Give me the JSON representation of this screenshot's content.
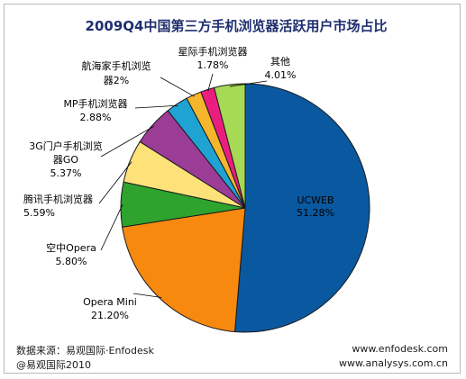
{
  "chart_data": {
    "type": "pie",
    "title": "2009Q4中国第三方手机浏览器活跃用户市场占比",
    "slices": [
      {
        "name": "UCWEB",
        "value": 51.28,
        "value_label": "51.28%",
        "color": "#0a58a0"
      },
      {
        "name": "Opera Mini",
        "value": 21.2,
        "value_label": "21.20%",
        "color": "#f7890f"
      },
      {
        "name": "空中Opera",
        "value": 5.8,
        "value_label": "5.80%",
        "color": "#2ea32e"
      },
      {
        "name": "腾讯手机浏览器",
        "value": 5.59,
        "value_label": "5.59%",
        "color": "#fde27a"
      },
      {
        "name": "3G门户手机浏览器GO",
        "value": 5.37,
        "value_label": "5.37%",
        "color": "#9b3d96"
      },
      {
        "name": "MP手机浏览器",
        "value": 2.88,
        "value_label": "2.88%",
        "color": "#1fa3d3"
      },
      {
        "name": "航海家手机浏览器",
        "value": 2.0,
        "value_label": "2%",
        "color": "#f3b62c"
      },
      {
        "name": "星际手机浏览器",
        "value": 1.78,
        "value_label": "1.78%",
        "color": "#ea1e7f"
      },
      {
        "name": "其他",
        "value": 4.01,
        "value_label": "4.01%",
        "color": "#a6da55"
      }
    ]
  },
  "footer": {
    "source": "数据来源：易观国际·Enfodesk",
    "copyright": "@易观国际2010",
    "site1": "www.enfodesk.com",
    "site2": "www.analysys.com.cn"
  }
}
